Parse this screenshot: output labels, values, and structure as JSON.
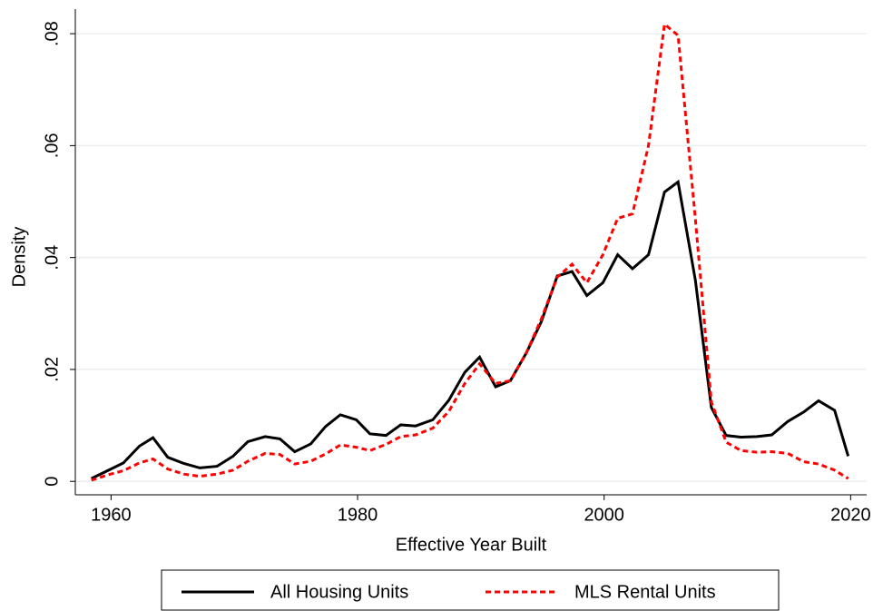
{
  "chart_data": {
    "type": "line",
    "xlabel": "Effective Year Built",
    "ylabel": "Density",
    "x": [
      1958.4,
      1959.8,
      1961,
      1962.3,
      1963.4,
      1964.6,
      1965.9,
      1967.2,
      1968.6,
      1969.9,
      1971.1,
      1972.5,
      1973.7,
      1974.9,
      1976.2,
      1977.4,
      1978.6,
      1979.9,
      1981,
      1982.3,
      1983.5,
      1984.7,
      1986.1,
      1987.4,
      1988.7,
      1989.9,
      1991.2,
      1992.4,
      1993.7,
      1994.9,
      1996.2,
      1997.4,
      1998.6,
      1999.9,
      2001.1,
      2002.3,
      2003.6,
      2004.9,
      2006,
      2007.4,
      2008.7,
      2009.9,
      2011.1,
      2012.4,
      2013.6,
      2014.9,
      2016.2,
      2017.4,
      2018.7,
      2019.8
    ],
    "series": [
      {
        "name": "All Housing Units",
        "color": "#000000",
        "style": "solid",
        "values": [
          0.0005,
          0.002,
          0.0033,
          0.0063,
          0.0078,
          0.0043,
          0.0032,
          0.0024,
          0.0027,
          0.0045,
          0.0071,
          0.008,
          0.0076,
          0.0053,
          0.0067,
          0.0098,
          0.0119,
          0.011,
          0.0085,
          0.0082,
          0.0101,
          0.0099,
          0.011,
          0.0145,
          0.0195,
          0.0222,
          0.0169,
          0.018,
          0.023,
          0.0285,
          0.0367,
          0.0375,
          0.0332,
          0.0355,
          0.0405,
          0.038,
          0.0405,
          0.0517,
          0.0535,
          0.036,
          0.0132,
          0.0082,
          0.0079,
          0.008,
          0.0083,
          0.0107,
          0.0124,
          0.0144,
          0.0127,
          0.0045
        ]
      },
      {
        "name": "MLS Rental Units",
        "color": "#ff0000",
        "style": "dashed",
        "values": [
          0.0002,
          0.0012,
          0.0019,
          0.0033,
          0.004,
          0.0022,
          0.0013,
          0.0009,
          0.0013,
          0.002,
          0.0036,
          0.005,
          0.0048,
          0.0031,
          0.0036,
          0.0049,
          0.0065,
          0.0061,
          0.0055,
          0.0066,
          0.008,
          0.0083,
          0.0095,
          0.0125,
          0.0175,
          0.021,
          0.0175,
          0.018,
          0.023,
          0.029,
          0.0365,
          0.0388,
          0.0355,
          0.0405,
          0.047,
          0.0478,
          0.06,
          0.0817,
          0.0797,
          0.047,
          0.0142,
          0.007,
          0.0055,
          0.0052,
          0.0053,
          0.005,
          0.0035,
          0.0031,
          0.002,
          0.0005
        ]
      }
    ],
    "xlim": [
      1957.1,
      2021.3
    ],
    "xticks": [
      1960,
      1980,
      2000,
      2020
    ],
    "ylim": [
      -0.0024,
      0.0844
    ],
    "yticks": [
      0,
      {
        "value": 0.02,
        "label": ".02"
      },
      {
        "value": 0.04,
        "label": ".04"
      },
      {
        "value": 0.06,
        "label": ".06"
      },
      {
        "value": 0.08,
        "label": ".08"
      }
    ],
    "grid": true,
    "legend": "bottom"
  }
}
